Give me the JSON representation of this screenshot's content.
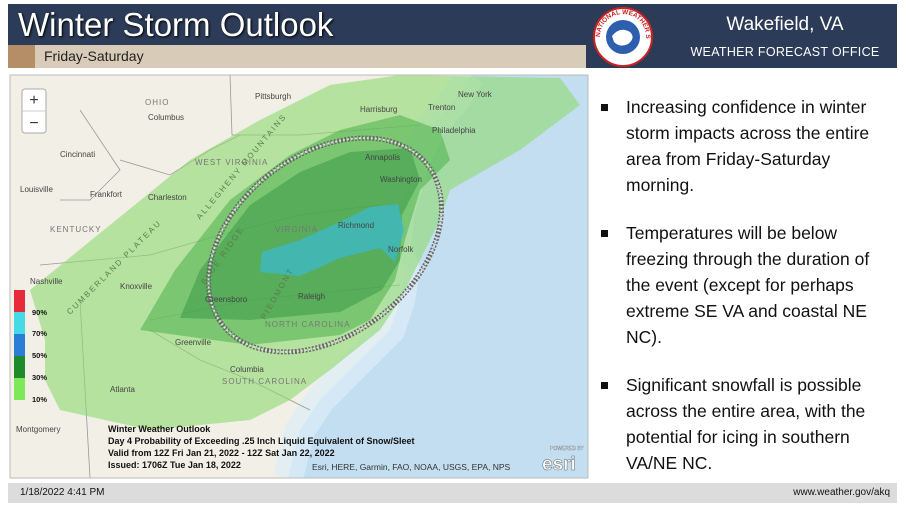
{
  "header": {
    "title": "Winter Storm Outlook",
    "subtitle": "Friday-Saturday"
  },
  "office": {
    "name": "Wakefield, VA",
    "label": "WEATHER FORECAST OFFICE",
    "logo_text": "NATIONAL WEATHER SERVICE"
  },
  "map": {
    "zoom_in": "+",
    "zoom_out": "−",
    "labels": [
      "OHIO",
      "Columbus",
      "Pittsburgh",
      "Harrisburg",
      "Trenton",
      "New York",
      "Philadelphia",
      "Cincinnati",
      "Louisville",
      "Frankfort",
      "Charleston",
      "WEST VIRGINIA",
      "KENTUCKY",
      "VIRGINIA",
      "Richmond",
      "Norfolk",
      "Washington",
      "Annapolis",
      "Nashville",
      "Knoxville",
      "Greensboro",
      "Raleigh",
      "NORTH CAROLINA",
      "Greenville",
      "Atlanta",
      "SOUTH CAROLINA",
      "Columbia",
      "Montgomery",
      "ALLEGHENY MOUNTAINS",
      "CUMBERLAND PLATEAU",
      "PIEDMONT",
      "BLUE RIDGE"
    ],
    "legend": [
      "90%",
      "70%",
      "50%",
      "30%",
      "10%"
    ],
    "caption": [
      "Winter Weather Outlook",
      "Day 4 Probability of Exceeding .25 Inch Liquid Equivalent of Snow/Sleet",
      "Valid from 12Z Fri Jan 21, 2022 - 12Z Sat Jan 22, 2022",
      "Issued: 1706Z Tue Jan 18, 2022"
    ],
    "attribution": "Esri, HERE, Garmin, FAO, NOAA, USGS, EPA, NPS",
    "esri_small": "POWERED BY",
    "esri": "esri"
  },
  "bullets": [
    "Increasing confidence in winter storm impacts across the entire area from Friday-Saturday morning.",
    "Temperatures will be below freezing through the duration of the event (except for perhaps extreme SE VA and coastal NE NC).",
    "Significant snowfall is possible across the entire area, with the potential for icing in southern VA/NE NC."
  ],
  "footer": {
    "date": "1/18/2022 4:41 PM",
    "url": "www.weather.gov/akq"
  }
}
